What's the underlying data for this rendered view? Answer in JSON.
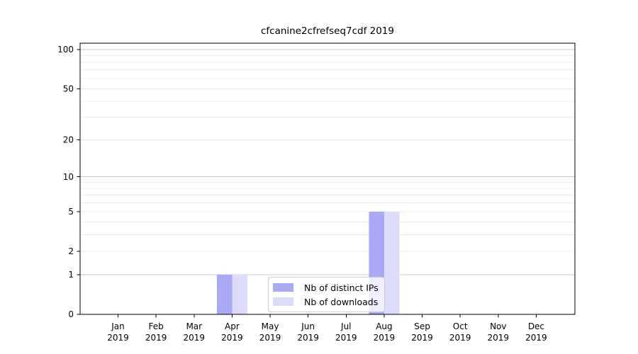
{
  "chart_data": {
    "type": "bar",
    "title": "cfcanine2cfrefseq7cdf 2019",
    "year": "2019",
    "categories": [
      "Jan",
      "Feb",
      "Mar",
      "Apr",
      "May",
      "Jun",
      "Jul",
      "Aug",
      "Sep",
      "Oct",
      "Nov",
      "Dec"
    ],
    "series": [
      {
        "name": "Nb of distinct IPs",
        "color": "#a9a9f6",
        "values": [
          0,
          0,
          0,
          1,
          0,
          0,
          0,
          5,
          0,
          0,
          0,
          0
        ]
      },
      {
        "name": "Nb of downloads",
        "color": "#dcdcfa",
        "values": [
          0,
          0,
          0,
          1,
          0,
          0,
          0,
          5,
          0,
          0,
          0,
          0
        ]
      }
    ],
    "y_axis": {
      "scale": "log2(1+v)",
      "tick_values": [
        0,
        1,
        2,
        5,
        10,
        20,
        50,
        100
      ],
      "tick_labels": [
        "0",
        "1",
        "2",
        "5",
        "10",
        "20",
        "50",
        "100"
      ],
      "major_gridlines": [
        1,
        10,
        100
      ],
      "minor_gridlines": [
        2,
        3,
        4,
        5,
        6,
        7,
        8,
        9,
        20,
        30,
        40,
        50,
        60,
        70,
        80,
        90
      ],
      "ylim": [
        0,
        112
      ]
    },
    "legend_position": "lower-center-inside",
    "grid": true
  },
  "colors": {
    "bar_distinct_ips": "#a9a9f6",
    "bar_downloads": "#dcdcfa",
    "major_grid": "#c9c9c9",
    "minor_grid": "#ececec",
    "axis": "#000000",
    "tick_text": "#000000",
    "legend_border": "#cccccc"
  }
}
